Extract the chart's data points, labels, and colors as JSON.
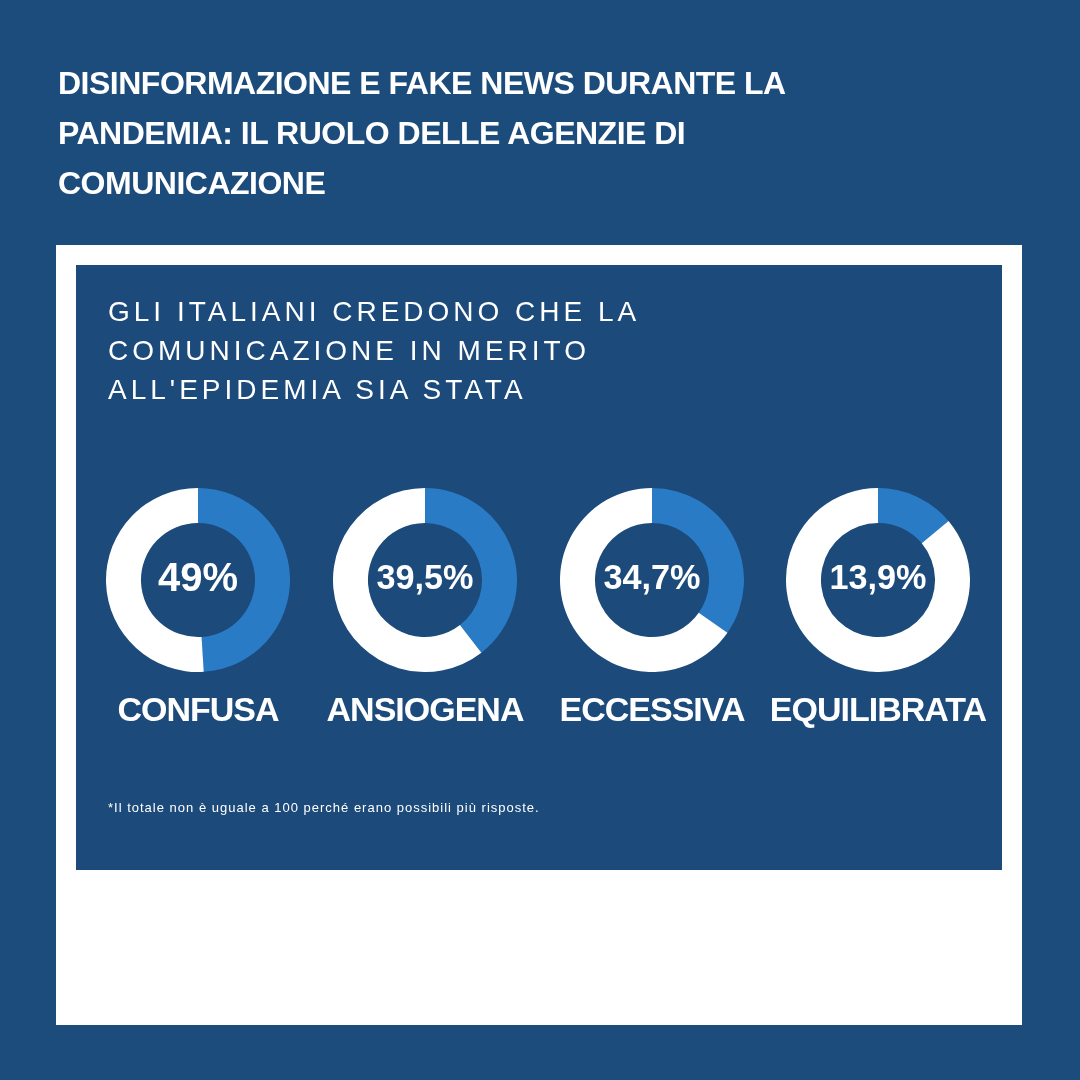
{
  "chart_data": [
    {
      "type": "other",
      "title": "DISINFORMAZIONE E FAKE NEWS DURANTE LA PANDEMIA: IL RUOLO DELLE AGENZIE DI COMUNICAZIONE",
      "subtitle": "GLI ITALIANI CREDONO CHE LA COMUNICAZIONE IN MERITO ALL'EPIDEMIA SIA STATA",
      "annotations": [
        "*Il totale non è uguale a 100 perché erano possibili più risposte."
      ]
    },
    {
      "type": "donut",
      "title": "CONFUSA",
      "categories": [
        null,
        null
      ],
      "values": [
        49,
        51
      ],
      "colors": [
        "#2a7bc6",
        "#ffffff"
      ],
      "value_labels": [
        "49%",
        null
      ]
    },
    {
      "type": "donut",
      "title": "ANSIOGENA",
      "categories": [
        null,
        null
      ],
      "values": [
        39.5,
        60.5
      ],
      "colors": [
        "#2a7bc6",
        "#ffffff"
      ],
      "value_labels": [
        "39,5%",
        null
      ]
    },
    {
      "type": "donut",
      "title": "ECCESSIVA",
      "categories": [
        null,
        null
      ],
      "values": [
        34.7,
        65.3
      ],
      "colors": [
        "#2a7bc6",
        "#ffffff"
      ],
      "value_labels": [
        "34,7%",
        null
      ]
    },
    {
      "type": "donut",
      "title": "EQUILIBRATA",
      "categories": [
        null,
        null
      ],
      "values": [
        13.9,
        86.1
      ],
      "colors": [
        "#2a7bc6",
        "#ffffff"
      ],
      "value_labels": [
        "13,9%",
        null
      ]
    }
  ]
}
